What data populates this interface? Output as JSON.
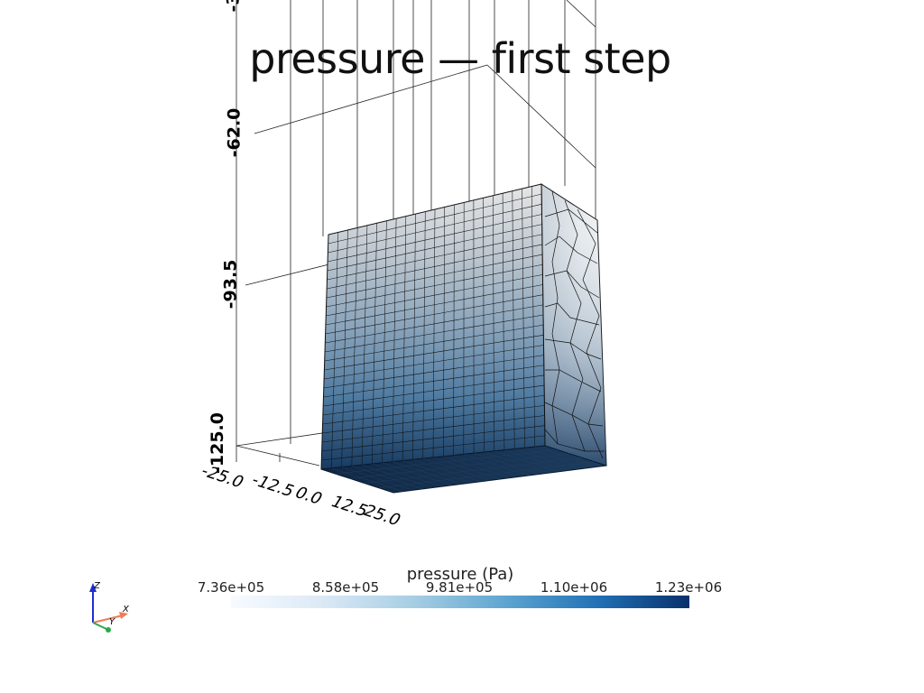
{
  "title": "pressure — first step",
  "z_axis": {
    "tick_labels": [
      "-62.0",
      "-93.5",
      "-125.0"
    ],
    "top_partial": "-3"
  },
  "x_axis": {
    "tick_labels": [
      "-25.0",
      "-12.5",
      "0.0",
      "12.5",
      "25.0"
    ]
  },
  "colorbar": {
    "title": "pressure (Pa)",
    "tick_labels": [
      "7.36e+05",
      "8.58e+05",
      "9.81e+05",
      "1.10e+06",
      "1.23e+06"
    ],
    "colormap": [
      "#f7fbff",
      "#dbe9f6",
      "#a6cde3",
      "#5da5d1",
      "#2171b5",
      "#08306b"
    ]
  },
  "orientation_axes": {
    "z_label": "Z",
    "x_label": "X",
    "y_label": "Y",
    "z_color": "#1f2fcf",
    "x_color": "#f07a5a",
    "y_color": "#2aa84a"
  }
}
